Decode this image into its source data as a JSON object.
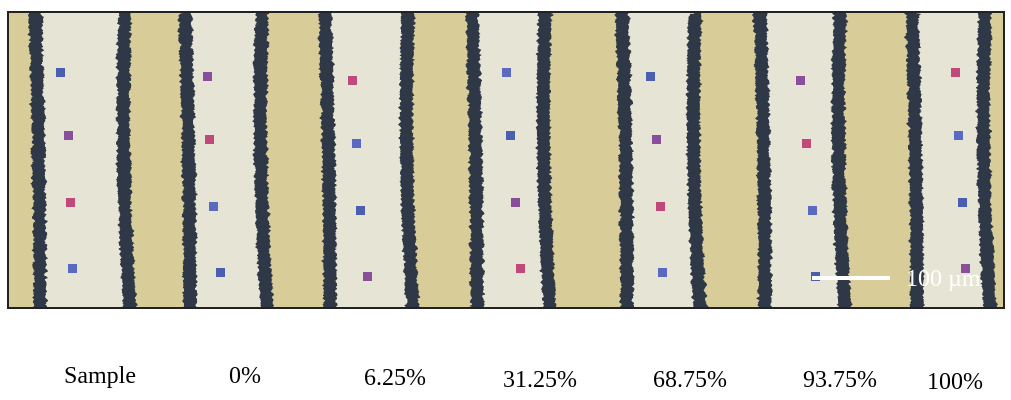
{
  "scale_bar": {
    "label": "100 µm"
  },
  "labels": [
    "Sample",
    "0%",
    "6.25%",
    "31.25%",
    "68.75%",
    "93.75%",
    "100%"
  ]
}
